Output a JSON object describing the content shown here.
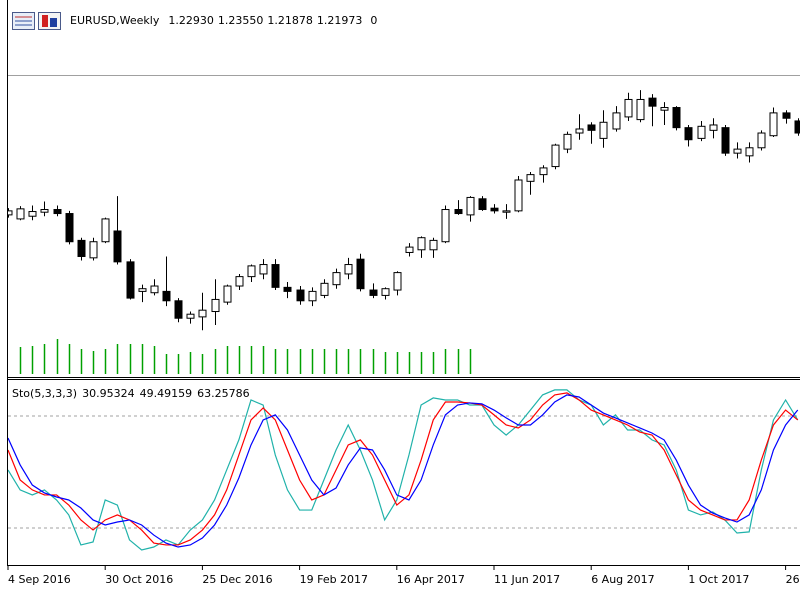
{
  "chart_data": [
    {
      "type": "candlestick",
      "title": "EURUSD,Weekly",
      "last_bar": [
        {
          "value": 1.2293,
          "label": "1.22930"
        },
        {
          "value": 1.2355,
          "label": "1.23550"
        },
        {
          "value": 1.21878,
          "label": "1.21878"
        },
        {
          "value": 1.21973,
          "label": "1.21973"
        },
        0
      ],
      "categories": [
        "4 Sep 2016",
        null,
        null,
        null,
        null,
        null,
        null,
        null,
        "30 Oct 2016",
        null,
        null,
        null,
        null,
        null,
        null,
        null,
        "25 Dec 2016",
        null,
        null,
        null,
        null,
        null,
        null,
        null,
        "19 Feb 2017",
        null,
        null,
        null,
        null,
        null,
        null,
        null,
        "16 Apr 2017",
        null,
        null,
        null,
        null,
        null,
        null,
        null,
        "11 Jun 2017",
        null,
        null,
        null,
        null,
        null,
        null,
        null,
        "6 Aug 2017",
        null,
        null,
        null,
        null,
        null,
        null,
        null,
        "1 Oct 2017",
        null,
        null,
        null,
        null,
        null,
        null,
        null,
        "26",
        null
      ],
      "open": [
        1.116,
        1.113,
        1.115,
        1.118,
        1.12,
        1.117,
        1.097,
        1.084,
        1.096,
        1.104,
        1.081,
        1.059,
        1.058,
        1.059,
        1.052,
        1.039,
        1.04,
        1.044,
        1.051,
        1.063,
        1.07,
        1.072,
        1.079,
        1.062,
        1.06,
        1.052,
        1.056,
        1.064,
        1.072,
        1.083,
        1.06,
        1.056,
        1.06,
        1.088,
        1.09,
        1.09,
        1.096,
        1.12,
        1.116,
        1.128,
        1.121,
        1.118,
        1.119,
        1.141,
        1.146,
        1.152,
        1.165,
        1.177,
        1.183,
        1.173,
        1.18,
        1.189,
        1.187,
        1.203,
        1.194,
        1.196,
        1.181,
        1.173,
        1.179,
        1.181,
        1.162,
        1.16,
        1.166,
        1.175,
        1.192,
        1.186
      ],
      "high": [
        1.121,
        1.1225,
        1.123,
        1.126,
        1.123,
        1.119,
        1.099,
        1.099,
        1.114,
        1.13,
        1.083,
        1.064,
        1.068,
        1.085,
        1.054,
        1.044,
        1.058,
        1.068,
        1.064,
        1.072,
        1.079,
        1.083,
        1.083,
        1.066,
        1.063,
        1.062,
        1.068,
        1.076,
        1.084,
        1.087,
        1.065,
        1.062,
        1.074,
        1.095,
        1.1,
        1.099,
        1.123,
        1.127,
        1.13,
        1.13,
        1.124,
        1.124,
        1.145,
        1.148,
        1.153,
        1.169,
        1.178,
        1.191,
        1.185,
        1.194,
        1.197,
        1.207,
        1.209,
        1.206,
        1.2,
        1.197,
        1.183,
        1.186,
        1.188,
        1.183,
        1.17,
        1.17,
        1.179,
        1.196,
        1.194,
        1.188
      ],
      "low": [
        1.114,
        1.112,
        1.112,
        1.115,
        1.115,
        1.094,
        1.082,
        1.082,
        1.095,
        1.079,
        1.053,
        1.051,
        1.056,
        1.048,
        1.036,
        1.035,
        1.03,
        1.034,
        1.049,
        1.06,
        1.066,
        1.068,
        1.06,
        1.054,
        1.049,
        1.048,
        1.054,
        1.061,
        1.068,
        1.059,
        1.054,
        1.053,
        1.056,
        1.085,
        1.084,
        1.084,
        1.095,
        1.116,
        1.111,
        1.119,
        1.117,
        1.113,
        1.118,
        1.131,
        1.14,
        1.15,
        1.162,
        1.172,
        1.169,
        1.166,
        1.178,
        1.186,
        1.185,
        1.182,
        1.183,
        1.179,
        1.167,
        1.171,
        1.173,
        1.16,
        1.158,
        1.155,
        1.164,
        1.174,
        1.184,
        1.175
      ],
      "close": [
        1.119,
        1.1205,
        1.1185,
        1.12,
        1.117,
        1.096,
        1.085,
        1.096,
        1.113,
        1.081,
        1.054,
        1.061,
        1.063,
        1.052,
        1.039,
        1.042,
        1.045,
        1.053,
        1.063,
        1.07,
        1.078,
        1.079,
        1.062,
        1.059,
        1.052,
        1.059,
        1.065,
        1.073,
        1.079,
        1.061,
        1.056,
        1.061,
        1.073,
        1.092,
        1.099,
        1.097,
        1.12,
        1.117,
        1.129,
        1.12,
        1.119,
        1.119,
        1.142,
        1.146,
        1.151,
        1.168,
        1.176,
        1.18,
        1.179,
        1.185,
        1.192,
        1.202,
        1.202,
        1.197,
        1.196,
        1.181,
        1.172,
        1.182,
        1.183,
        1.162,
        1.165,
        1.166,
        1.177,
        1.192,
        1.188,
        1.177
      ],
      "volume": [
        null,
        27,
        28,
        30,
        35,
        30,
        25,
        23,
        25,
        30,
        30,
        30,
        28,
        20,
        20,
        22,
        20,
        25,
        28,
        28,
        28,
        28,
        25,
        25,
        25,
        25,
        25,
        25,
        25,
        25,
        25,
        22,
        22,
        22,
        22,
        22,
        25,
        25,
        25,
        null,
        null,
        null,
        null,
        null,
        null,
        null,
        null,
        null,
        null,
        null,
        null,
        null,
        null,
        null,
        null,
        null,
        null,
        null,
        null,
        null,
        null,
        null,
        null,
        null,
        null,
        null
      ],
      "volume_lim": [
        0,
        100
      ],
      "volume_color": "#00a000",
      "bull_color": "#ffffff",
      "bear_color": "#000000",
      "ylim": [
        0.9967,
        1.2627
      ]
    },
    {
      "type": "line",
      "title": "Sto(5,3,3,3)",
      "ylim": [
        0,
        100
      ],
      "levels": [
        20,
        80
      ],
      "series": [
        {
          "color": "#20b2aa",
          "last": 30.95324,
          "values": [
            51.1,
            40.4,
            37.7,
            40.4,
            35.0,
            27.0,
            10.9,
            12.5,
            35.0,
            32.3,
            13.6,
            8.2,
            9.8,
            13.6,
            10.9,
            18.9,
            24.3,
            35.0,
            51.1,
            67.2,
            88.6,
            85.9,
            59.1,
            40.4,
            29.6,
            29.6,
            45.7,
            61.8,
            75.2,
            61.8,
            45.7,
            24.3,
            35.0,
            59.1,
            85.9,
            89.7,
            88.6,
            88.6,
            85.9,
            85.9,
            75.2,
            69.8,
            75.2,
            83.2,
            91.3,
            94.0,
            94.0,
            88.6,
            85.9,
            75.2,
            80.6,
            72.5,
            72.5,
            67.2,
            64.5,
            51.1,
            29.6,
            27.0,
            28.6,
            24.3,
            17.3,
            17.9,
            51.1,
            77.9,
            88.6,
            77.9
          ]
        },
        {
          "color": "#ff0000",
          "last": 49.49159,
          "values": [
            61.8,
            45.7,
            40.4,
            37.7,
            37.7,
            32.3,
            24.3,
            18.9,
            24.3,
            27.0,
            24.3,
            18.9,
            11.9,
            10.9,
            10.9,
            13.6,
            18.9,
            27.0,
            40.4,
            59.1,
            77.9,
            84.3,
            77.9,
            61.8,
            45.7,
            35.0,
            37.7,
            51.1,
            64.5,
            67.2,
            59.1,
            45.7,
            32.3,
            37.7,
            56.4,
            77.9,
            87.5,
            87.5,
            87.0,
            85.9,
            80.6,
            75.2,
            73.6,
            77.9,
            85.9,
            91.3,
            92.4,
            88.6,
            83.2,
            80.6,
            77.9,
            75.2,
            71.4,
            69.8,
            61.8,
            48.4,
            35.0,
            29.6,
            27.0,
            24.3,
            24.3,
            35.0,
            56.4,
            75.2,
            83.2,
            77.9
          ]
        },
        {
          "color": "#0000ff",
          "last": 63.25786,
          "values": [
            68.2,
            53.8,
            43.0,
            38.8,
            36.6,
            35.0,
            30.7,
            24.3,
            21.6,
            23.2,
            24.3,
            21.6,
            16.2,
            11.9,
            9.8,
            10.9,
            14.6,
            21.6,
            32.3,
            46.8,
            64.5,
            77.9,
            80.6,
            72.5,
            59.1,
            45.7,
            37.7,
            41.4,
            53.8,
            62.9,
            61.8,
            51.1,
            37.7,
            35.0,
            45.7,
            64.5,
            80.6,
            85.9,
            87.0,
            86.5,
            83.2,
            79.0,
            75.2,
            75.2,
            80.6,
            87.5,
            91.3,
            90.2,
            85.9,
            81.6,
            79.0,
            76.3,
            73.6,
            70.9,
            67.2,
            56.4,
            43.0,
            32.3,
            28.0,
            25.4,
            23.2,
            27.0,
            40.4,
            61.8,
            75.2,
            83.2
          ]
        }
      ]
    }
  ]
}
